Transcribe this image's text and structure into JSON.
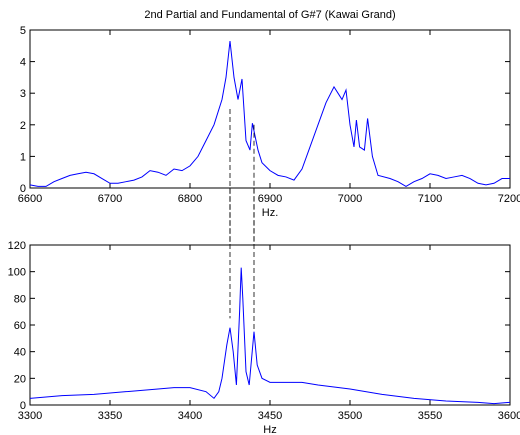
{
  "chart_data": [
    {
      "type": "line",
      "title": "2nd Partial and Fundamental of G#7 (Kawai Grand)",
      "xlabel": "Hz.",
      "x": [
        6600,
        6610,
        6620,
        6630,
        6640,
        6650,
        6660,
        6670,
        6680,
        6690,
        6700,
        6710,
        6720,
        6730,
        6740,
        6750,
        6760,
        6770,
        6780,
        6790,
        6800,
        6810,
        6820,
        6830,
        6840,
        6845,
        6850,
        6855,
        6860,
        6865,
        6870,
        6875,
        6878,
        6885,
        6890,
        6900,
        6910,
        6920,
        6930,
        6940,
        6950,
        6960,
        6970,
        6980,
        6985,
        6990,
        6995,
        7000,
        7005,
        7008,
        7012,
        7018,
        7022,
        7028,
        7035,
        7050,
        7060,
        7070,
        7080,
        7090,
        7100,
        7110,
        7120,
        7130,
        7140,
        7150,
        7160,
        7170,
        7180,
        7190,
        7200
      ],
      "series": [
        {
          "color": "#0000ff",
          "values": [
            0.1,
            0.05,
            0.05,
            0.2,
            0.3,
            0.4,
            0.45,
            0.5,
            0.45,
            0.3,
            0.15,
            0.15,
            0.2,
            0.25,
            0.35,
            0.55,
            0.5,
            0.4,
            0.6,
            0.55,
            0.7,
            1.0,
            1.5,
            2.0,
            2.8,
            3.5,
            4.65,
            3.5,
            2.8,
            3.45,
            1.5,
            1.2,
            2.05,
            1.2,
            0.8,
            0.55,
            0.4,
            0.35,
            0.25,
            0.6,
            1.3,
            2.0,
            2.7,
            3.2,
            3.0,
            2.8,
            3.1,
            2.0,
            1.3,
            2.15,
            1.3,
            1.2,
            2.2,
            1.0,
            0.4,
            0.3,
            0.2,
            0.05,
            0.2,
            0.3,
            0.45,
            0.4,
            0.3,
            0.35,
            0.4,
            0.3,
            0.15,
            0.1,
            0.15,
            0.3,
            0.3
          ]
        }
      ],
      "xlim": [
        6600,
        7200
      ],
      "xticks": [
        6600,
        6700,
        6800,
        6900,
        7000,
        7100,
        7200
      ],
      "ylim": [
        0,
        5
      ],
      "yticks": [
        0,
        1,
        2,
        3,
        4,
        5
      ],
      "vlines": [
        {
          "x": 6850,
          "y": 2.5
        },
        {
          "x": 6880,
          "y": 2
        }
      ]
    },
    {
      "type": "line",
      "xlabel": "Hz",
      "x": [
        3300,
        3320,
        3340,
        3360,
        3380,
        3390,
        3400,
        3410,
        3415,
        3418,
        3420,
        3423,
        3425,
        3427,
        3429,
        3431,
        3432,
        3433,
        3435,
        3437,
        3440,
        3442,
        3445,
        3450,
        3460,
        3470,
        3480,
        3500,
        3520,
        3540,
        3560,
        3580,
        3590,
        3600
      ],
      "series": [
        {
          "color": "#0000ff",
          "values": [
            5,
            7,
            8,
            10,
            12,
            13,
            13,
            10,
            5,
            10,
            20,
            45,
            58,
            40,
            15,
            70,
            103,
            80,
            25,
            15,
            55,
            30,
            20,
            17,
            17,
            17,
            15,
            12,
            8,
            5,
            3,
            2,
            1,
            2
          ]
        }
      ],
      "xlim": [
        3300,
        3600
      ],
      "xticks": [
        3300,
        3350,
        3400,
        3450,
        3500,
        3550,
        3600
      ],
      "ylim": [
        0,
        120
      ],
      "yticks": [
        0,
        20,
        40,
        60,
        80,
        100,
        120
      ],
      "vlines": [
        {
          "x": 3425,
          "y": 65
        },
        {
          "x": 3440,
          "y": 55
        }
      ]
    }
  ]
}
